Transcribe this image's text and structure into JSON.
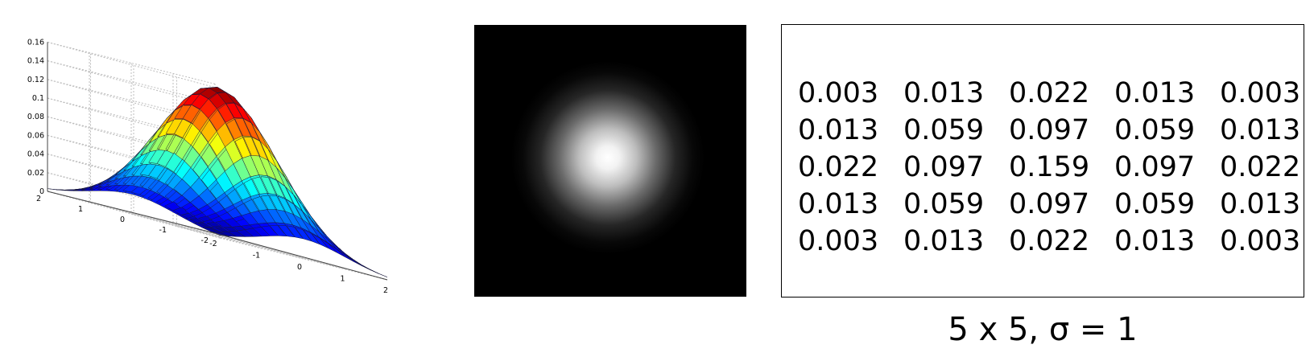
{
  "plot": {
    "z_ticks": [
      "0.16",
      "0.14",
      "0.12",
      "0.1",
      "0.08",
      "0.06",
      "0.04",
      "0.02",
      "0"
    ],
    "y_ticks": [
      "2",
      "1",
      "0",
      "-1",
      "-2"
    ],
    "x_ticks": [
      "-2",
      "-1",
      "0",
      "1",
      "2"
    ]
  },
  "kernel": {
    "rows": [
      [
        "0.003",
        "0.013",
        "0.022",
        "0.013",
        "0.003"
      ],
      [
        "0.013",
        "0.059",
        "0.097",
        "0.059",
        "0.013"
      ],
      [
        "0.022",
        "0.097",
        "0.159",
        "0.097",
        "0.022"
      ],
      [
        "0.013",
        "0.059",
        "0.097",
        "0.059",
        "0.013"
      ],
      [
        "0.003",
        "0.013",
        "0.022",
        "0.013",
        "0.003"
      ]
    ]
  },
  "caption": "5 x 5, σ = 1"
}
